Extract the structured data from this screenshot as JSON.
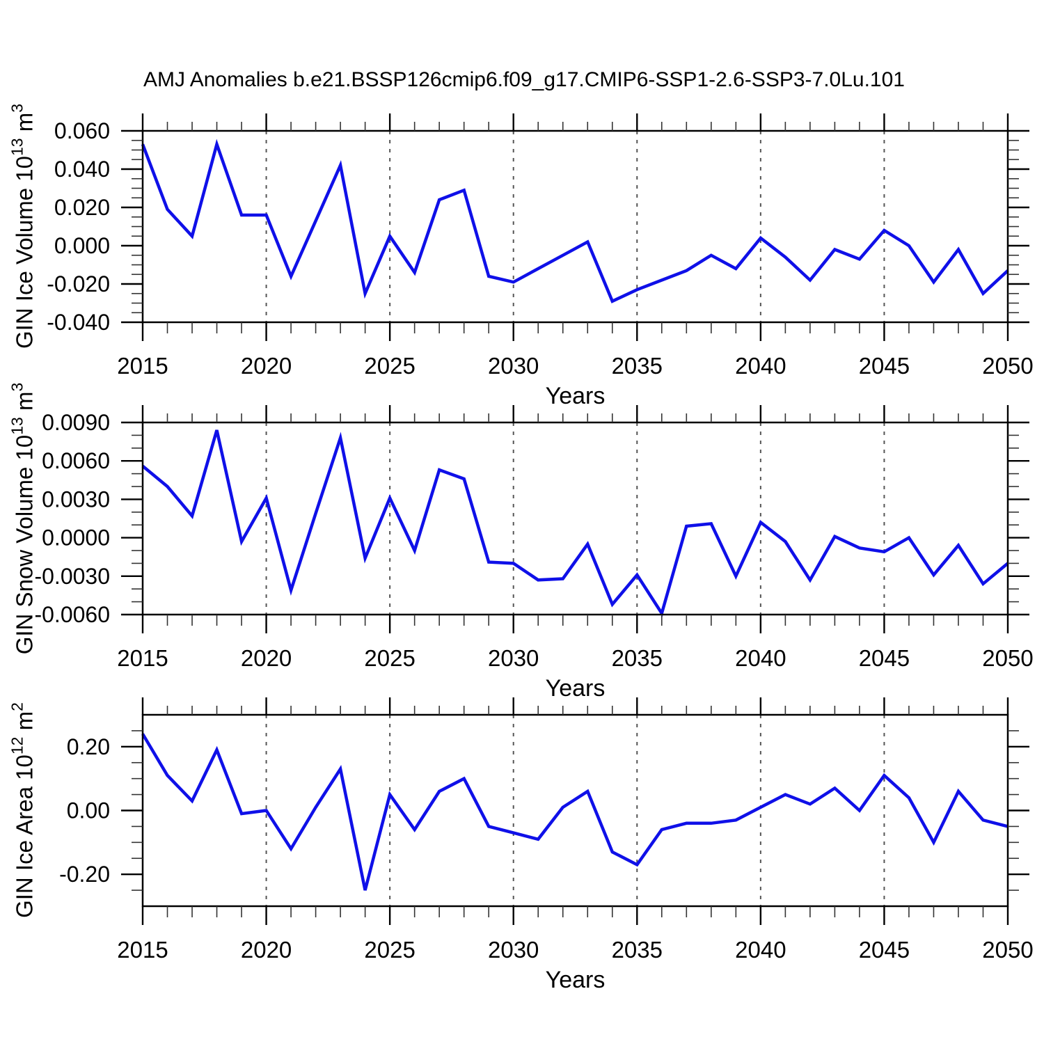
{
  "title": "AMJ Anomalies b.e21.BSSP126cmip6.f09_g17.CMIP6-SSP1-2.6-SSP3-7.0Lu.101",
  "x_axis": {
    "label": "Years",
    "ticks": [
      "2015",
      "2020",
      "2025",
      "2030",
      "2035",
      "2040",
      "2045",
      "2050"
    ],
    "range": [
      2015,
      2050
    ],
    "minor_step_years": 1,
    "grid_years": [
      2020,
      2025,
      2030,
      2035,
      2040,
      2045
    ]
  },
  "colors": {
    "line": "#0f10e8",
    "axis": "#000000",
    "minor_tick": "#333333",
    "grid_dash": "#555555",
    "background": "#ffffff"
  },
  "panels": [
    {
      "ylabel_base": "GIN Ice Volume 10",
      "ylabel_exp": "13",
      "ylabel_unit": " m",
      "ylabel_unit_exp": "3"
    },
    {
      "ylabel_base": "GIN Snow Volume 10",
      "ylabel_exp": "13",
      "ylabel_unit": " m",
      "ylabel_unit_exp": "3"
    },
    {
      "ylabel_base": "GIN Ice Area 10",
      "ylabel_exp": "12",
      "ylabel_unit": " m",
      "ylabel_unit_exp": "2"
    }
  ],
  "chart_data": [
    {
      "type": "line",
      "name": "gin-ice-volume",
      "ylabel": "GIN Ice Volume 10^13 m^3",
      "xlabel": "Years",
      "legend": null,
      "grid": "vertical-dashed-every-5-years",
      "xlim": [
        2015,
        2050
      ],
      "xticks": [
        2015,
        2020,
        2025,
        2030,
        2035,
        2040,
        2045,
        2050
      ],
      "x_minor_step": 1,
      "ylim": [
        -0.04,
        0.06
      ],
      "yticks": [
        -0.04,
        -0.02,
        0.0,
        0.02,
        0.04,
        0.06
      ],
      "ytick_labels": [
        "-0.040",
        "-0.020",
        "0.000",
        "0.020",
        "0.040",
        "0.060"
      ],
      "y_minor_step": 0.005,
      "x": [
        2015,
        2016,
        2017,
        2018,
        2019,
        2020,
        2021,
        2022,
        2023,
        2024,
        2025,
        2026,
        2027,
        2028,
        2029,
        2030,
        2031,
        2032,
        2033,
        2034,
        2035,
        2036,
        2037,
        2038,
        2039,
        2040,
        2041,
        2042,
        2043,
        2044,
        2045,
        2046,
        2047,
        2048,
        2049,
        2050
      ],
      "values": [
        0.053,
        0.019,
        0.005,
        0.053,
        0.016,
        0.016,
        -0.016,
        0.013,
        0.042,
        -0.025,
        0.005,
        -0.014,
        0.024,
        0.029,
        -0.016,
        -0.019,
        -0.012,
        -0.005,
        0.002,
        -0.029,
        -0.023,
        -0.018,
        -0.013,
        -0.005,
        -0.012,
        0.004,
        -0.006,
        -0.018,
        -0.002,
        -0.007,
        0.008,
        0.0,
        -0.019,
        -0.002,
        -0.025,
        -0.013
      ]
    },
    {
      "type": "line",
      "name": "gin-snow-volume",
      "ylabel": "GIN Snow Volume 10^13 m^3",
      "xlabel": "Years",
      "legend": null,
      "grid": "vertical-dashed-every-5-years",
      "xlim": [
        2015,
        2050
      ],
      "xticks": [
        2015,
        2020,
        2025,
        2030,
        2035,
        2040,
        2045,
        2050
      ],
      "x_minor_step": 1,
      "ylim": [
        -0.006,
        0.009
      ],
      "yticks": [
        -0.006,
        -0.003,
        0.0,
        0.003,
        0.006,
        0.009
      ],
      "ytick_labels": [
        "-0.0060",
        "-0.0030",
        "0.0000",
        "0.0030",
        "0.0060",
        "0.0090"
      ],
      "y_minor_step": 0.001,
      "x": [
        2015,
        2016,
        2017,
        2018,
        2019,
        2020,
        2021,
        2022,
        2023,
        2024,
        2025,
        2026,
        2027,
        2028,
        2029,
        2030,
        2031,
        2032,
        2033,
        2034,
        2035,
        2036,
        2037,
        2038,
        2039,
        2040,
        2041,
        2042,
        2043,
        2044,
        2045,
        2046,
        2047,
        2048,
        2049,
        2050
      ],
      "values": [
        0.0056,
        0.004,
        0.0017,
        0.0084,
        -0.0003,
        0.0031,
        -0.0041,
        0.0019,
        0.0078,
        -0.0016,
        0.0031,
        -0.001,
        0.0053,
        0.0046,
        -0.0019,
        -0.002,
        -0.0033,
        -0.0032,
        -0.0005,
        -0.0052,
        -0.0029,
        -0.0059,
        0.0009,
        0.0011,
        -0.003,
        0.0012,
        -0.0003,
        -0.0033,
        0.0001,
        -0.0008,
        -0.0011,
        0.0,
        -0.0029,
        -0.0006,
        -0.0036,
        -0.002
      ]
    },
    {
      "type": "line",
      "name": "gin-ice-area",
      "ylabel": "GIN Ice Area 10^12 m^2",
      "xlabel": "Years",
      "legend": null,
      "grid": "vertical-dashed-every-5-years",
      "xlim": [
        2015,
        2050
      ],
      "xticks": [
        2015,
        2020,
        2025,
        2030,
        2035,
        2040,
        2045,
        2050
      ],
      "x_minor_step": 1,
      "ylim": [
        -0.3,
        0.3
      ],
      "yticks": [
        -0.2,
        0.0,
        0.2
      ],
      "ytick_labels": [
        "-0.20",
        "0.00",
        "0.20"
      ],
      "y_minor_step": 0.05,
      "x": [
        2015,
        2016,
        2017,
        2018,
        2019,
        2020,
        2021,
        2022,
        2023,
        2024,
        2025,
        2026,
        2027,
        2028,
        2029,
        2030,
        2031,
        2032,
        2033,
        2034,
        2035,
        2036,
        2037,
        2038,
        2039,
        2040,
        2041,
        2042,
        2043,
        2044,
        2045,
        2046,
        2047,
        2048,
        2049,
        2050
      ],
      "values": [
        0.24,
        0.11,
        0.03,
        0.19,
        -0.01,
        0.0,
        -0.12,
        0.01,
        0.13,
        -0.25,
        0.05,
        -0.06,
        0.06,
        0.1,
        -0.05,
        -0.07,
        -0.09,
        0.01,
        0.06,
        -0.13,
        -0.17,
        -0.06,
        -0.04,
        -0.04,
        -0.03,
        0.01,
        0.05,
        0.02,
        0.07,
        0.0,
        0.11,
        0.04,
        -0.1,
        0.06,
        -0.03,
        -0.05
      ]
    }
  ]
}
